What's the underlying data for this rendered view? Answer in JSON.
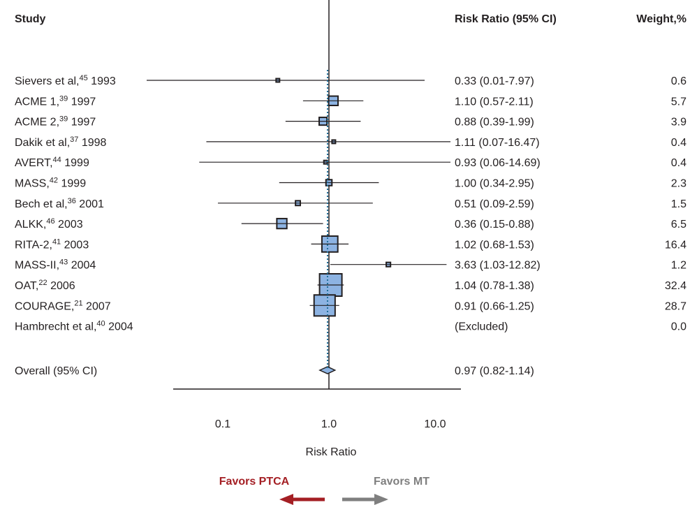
{
  "chart_data": {
    "type": "forest",
    "headers": {
      "study": "Study",
      "ratio": "Risk Ratio (95% CI)",
      "weight": "Weight,%"
    },
    "xlabel": "Risk Ratio",
    "x_scale": "log",
    "xlim": [
      0.05,
      20
    ],
    "ticks": [
      {
        "value": 0.1,
        "label": "0.1"
      },
      {
        "value": 1,
        "label": "1.0"
      },
      {
        "value": 10,
        "label": "10.0"
      }
    ],
    "null_value": 1,
    "overall_ref": 0.97,
    "studies": [
      {
        "name": "Sievers et al,",
        "sup": "45",
        "year": "1993",
        "rr": 0.33,
        "lo": 0.01,
        "hi": 7.97,
        "weight": 0.6,
        "ci_text": "0.33 (0.01-7.97)",
        "weight_text": "0.6"
      },
      {
        "name": "ACME 1,",
        "sup": "39",
        "year": "1997",
        "rr": 1.1,
        "lo": 0.57,
        "hi": 2.11,
        "weight": 5.7,
        "ci_text": "1.10 (0.57-2.11)",
        "weight_text": "5.7"
      },
      {
        "name": "ACME 2,",
        "sup": "39",
        "year": "1997",
        "rr": 0.88,
        "lo": 0.39,
        "hi": 1.99,
        "weight": 3.9,
        "ci_text": "0.88 (0.39-1.99)",
        "weight_text": "3.9"
      },
      {
        "name": "Dakik et al,",
        "sup": "37",
        "year": "1998",
        "rr": 1.11,
        "lo": 0.07,
        "hi": 16.47,
        "weight": 0.4,
        "ci_text": "1.11 (0.07-16.47)",
        "weight_text": "0.4"
      },
      {
        "name": "AVERT,",
        "sup": "44",
        "year": "1999",
        "rr": 0.93,
        "lo": 0.06,
        "hi": 14.69,
        "weight": 0.4,
        "ci_text": "0.93 (0.06-14.69)",
        "weight_text": "0.4"
      },
      {
        "name": "MASS,",
        "sup": "42",
        "year": "1999",
        "rr": 1.0,
        "lo": 0.34,
        "hi": 2.95,
        "weight": 2.3,
        "ci_text": "1.00 (0.34-2.95)",
        "weight_text": "2.3"
      },
      {
        "name": "Bech et al,",
        "sup": "36",
        "year": "2001",
        "rr": 0.51,
        "lo": 0.09,
        "hi": 2.59,
        "weight": 1.5,
        "ci_text": "0.51 (0.09-2.59)",
        "weight_text": "1.5"
      },
      {
        "name": "ALKK,",
        "sup": "46",
        "year": "2003",
        "rr": 0.36,
        "lo": 0.15,
        "hi": 0.88,
        "weight": 6.5,
        "ci_text": "0.36 (0.15-0.88)",
        "weight_text": "6.5"
      },
      {
        "name": "RITA-2,",
        "sup": "41",
        "year": "2003",
        "rr": 1.02,
        "lo": 0.68,
        "hi": 1.53,
        "weight": 16.4,
        "ci_text": "1.02 (0.68-1.53)",
        "weight_text": "16.4"
      },
      {
        "name": "MASS-II,",
        "sup": "43",
        "year": "2004",
        "rr": 3.63,
        "lo": 1.03,
        "hi": 12.82,
        "weight": 1.2,
        "ci_text": "3.63 (1.03-12.82)",
        "weight_text": "1.2"
      },
      {
        "name": "OAT,",
        "sup": "22",
        "year": "2006",
        "rr": 1.04,
        "lo": 0.78,
        "hi": 1.38,
        "weight": 32.4,
        "ci_text": "1.04 (0.78-1.38)",
        "weight_text": "32.4"
      },
      {
        "name": "COURAGE,",
        "sup": "21",
        "year": "2007",
        "rr": 0.91,
        "lo": 0.66,
        "hi": 1.25,
        "weight": 28.7,
        "ci_text": "0.91 (0.66-1.25)",
        "weight_text": "28.7"
      },
      {
        "name": "Hambrecht et al,",
        "sup": "40",
        "year": "2004",
        "rr": null,
        "lo": null,
        "hi": null,
        "weight": 0.0,
        "ci_text": "(Excluded)",
        "weight_text": "0.0"
      }
    ],
    "overall": {
      "label": "Overall (95% CI)",
      "rr": 0.97,
      "lo": 0.82,
      "hi": 1.14,
      "ci_text": "0.97 (0.82-1.14)"
    },
    "favors_left": "Favors PTCA",
    "favors_right": "Favors MT",
    "colors": {
      "marker_fill": "#8db3e2",
      "marker_stroke": "#231f20",
      "ref_line": "#1f6f99",
      "favors_left": "#a41f24",
      "favors_right": "#7f7f7f"
    }
  }
}
